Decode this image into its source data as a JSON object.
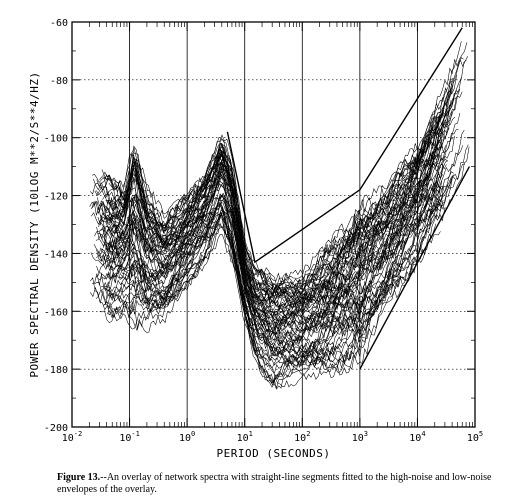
{
  "chart_data": {
    "type": "line",
    "title": "",
    "xlabel": "PERIOD (SECONDS)",
    "ylabel": "POWER SPECTRAL DENSITY (10LOG M**2/S**4/HZ)",
    "x_scale": "log",
    "xlim": [
      0.01,
      100000
    ],
    "ylim": [
      -200,
      -60
    ],
    "grid": true,
    "x_ticks": [
      {
        "base": "10",
        "exp": "-2",
        "value": 0.01
      },
      {
        "base": "10",
        "exp": "-1",
        "value": 0.1
      },
      {
        "base": "10",
        "exp": "0",
        "value": 1
      },
      {
        "base": "10",
        "exp": "1",
        "value": 10
      },
      {
        "base": "10",
        "exp": "2",
        "value": 100
      },
      {
        "base": "10",
        "exp": "3",
        "value": 1000
      },
      {
        "base": "10",
        "exp": "4",
        "value": 10000
      },
      {
        "base": "10",
        "exp": "5",
        "value": 100000
      }
    ],
    "y_ticks": [
      -60,
      -80,
      -100,
      -120,
      -140,
      -160,
      -180,
      -200
    ],
    "envelope_segments": [
      {
        "x": [
          5.0,
          15.0,
          1000.0,
          60000.0
        ],
        "y": [
          -98,
          -143,
          -118,
          -62
        ]
      },
      {
        "x": [
          1000.0,
          80000.0
        ],
        "y": [
          -180,
          -110
        ]
      }
    ],
    "spectra_band": {
      "x": [
        0.02,
        0.04,
        0.08,
        0.12,
        0.2,
        0.4,
        0.8,
        2.0,
        4.0,
        6.0,
        10.0,
        15.0,
        30.0,
        100.0,
        300.0,
        1000.0,
        3000.0,
        10000.0,
        30000.0,
        80000.0
      ],
      "upper": [
        -108,
        -110,
        -115,
        -95,
        -115,
        -125,
        -120,
        -110,
        -96,
        -105,
        -135,
        -143,
        -145,
        -145,
        -135,
        -120,
        -115,
        -100,
        -80,
        -60
      ],
      "lower": [
        -160,
        -165,
        -162,
        -168,
        -168,
        -165,
        -155,
        -145,
        -135,
        -145,
        -165,
        -178,
        -188,
        -185,
        -183,
        -180,
        -160,
        -145,
        -130,
        -110
      ]
    }
  },
  "caption": {
    "label": "Figure 13.",
    "text": "--An overlay of network spectra with straight-line segments fitted to the high-noise and low-noise envelopes of the overlay."
  }
}
